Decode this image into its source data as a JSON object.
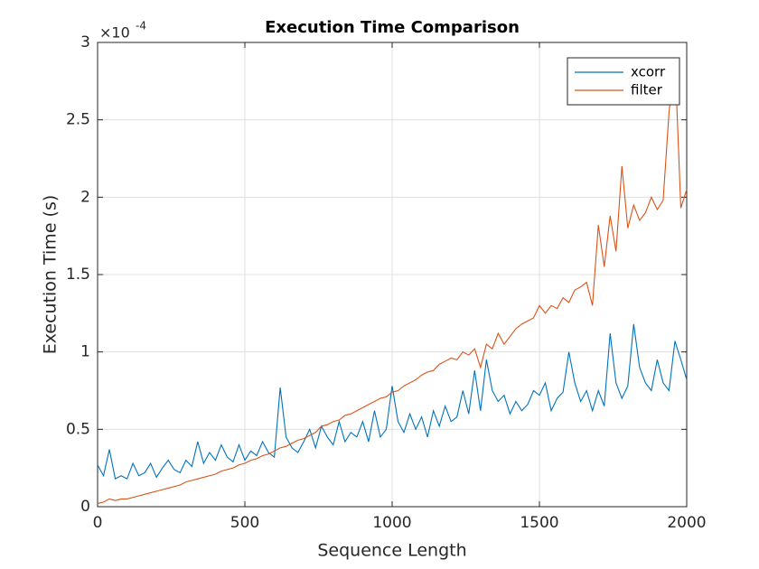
{
  "chart_data": {
    "type": "line",
    "title": "Execution Time Comparison",
    "xlabel": "Sequence Length",
    "ylabel": "Execution Time (s)",
    "y_exponent_base": "×10",
    "y_exponent": "-4",
    "x": [
      0,
      20,
      40,
      60,
      80,
      100,
      120,
      140,
      160,
      180,
      200,
      220,
      240,
      260,
      280,
      300,
      320,
      340,
      360,
      380,
      400,
      420,
      440,
      460,
      480,
      500,
      520,
      540,
      560,
      580,
      600,
      620,
      640,
      660,
      680,
      700,
      720,
      740,
      760,
      780,
      800,
      820,
      840,
      860,
      880,
      900,
      920,
      940,
      960,
      980,
      1000,
      1020,
      1040,
      1060,
      1080,
      1100,
      1120,
      1140,
      1160,
      1180,
      1200,
      1220,
      1240,
      1260,
      1280,
      1300,
      1320,
      1340,
      1360,
      1380,
      1400,
      1420,
      1440,
      1460,
      1480,
      1500,
      1520,
      1540,
      1560,
      1580,
      1600,
      1620,
      1640,
      1660,
      1680,
      1700,
      1720,
      1740,
      1760,
      1780,
      1800,
      1820,
      1840,
      1860,
      1880,
      1900,
      1920,
      1940,
      1960,
      1980,
      2000
    ],
    "series": [
      {
        "name": "xcorr",
        "color": "#0072bd",
        "values": [
          0.27,
          0.2,
          0.37,
          0.18,
          0.2,
          0.18,
          0.28,
          0.2,
          0.22,
          0.28,
          0.19,
          0.25,
          0.3,
          0.24,
          0.22,
          0.3,
          0.26,
          0.42,
          0.28,
          0.35,
          0.3,
          0.4,
          0.32,
          0.29,
          0.4,
          0.3,
          0.36,
          0.33,
          0.42,
          0.35,
          0.32,
          0.77,
          0.45,
          0.38,
          0.35,
          0.42,
          0.5,
          0.38,
          0.52,
          0.45,
          0.4,
          0.55,
          0.42,
          0.48,
          0.45,
          0.55,
          0.42,
          0.62,
          0.45,
          0.5,
          0.78,
          0.55,
          0.48,
          0.6,
          0.5,
          0.58,
          0.45,
          0.62,
          0.52,
          0.65,
          0.55,
          0.58,
          0.75,
          0.6,
          0.88,
          0.62,
          0.95,
          0.75,
          0.68,
          0.72,
          0.6,
          0.68,
          0.62,
          0.66,
          0.75,
          0.72,
          0.8,
          0.62,
          0.7,
          0.74,
          1.0,
          0.8,
          0.68,
          0.75,
          0.62,
          0.75,
          0.65,
          1.12,
          0.8,
          0.7,
          0.78,
          1.18,
          0.9,
          0.8,
          0.75,
          0.95,
          0.8,
          0.75,
          1.07,
          0.95,
          0.82
        ]
      },
      {
        "name": "filter",
        "color": "#d95319",
        "values": [
          0.02,
          0.03,
          0.05,
          0.04,
          0.05,
          0.05,
          0.06,
          0.07,
          0.08,
          0.09,
          0.1,
          0.11,
          0.12,
          0.13,
          0.14,
          0.16,
          0.17,
          0.18,
          0.19,
          0.2,
          0.21,
          0.23,
          0.24,
          0.25,
          0.27,
          0.28,
          0.3,
          0.31,
          0.33,
          0.34,
          0.36,
          0.38,
          0.39,
          0.41,
          0.43,
          0.44,
          0.46,
          0.48,
          0.52,
          0.53,
          0.55,
          0.56,
          0.59,
          0.6,
          0.62,
          0.64,
          0.66,
          0.68,
          0.7,
          0.71,
          0.74,
          0.75,
          0.78,
          0.8,
          0.82,
          0.85,
          0.87,
          0.88,
          0.92,
          0.94,
          0.96,
          0.95,
          1.0,
          0.98,
          1.02,
          0.9,
          1.05,
          1.02,
          1.12,
          1.05,
          1.1,
          1.15,
          1.18,
          1.2,
          1.22,
          1.3,
          1.25,
          1.3,
          1.28,
          1.35,
          1.32,
          1.4,
          1.42,
          1.45,
          1.3,
          1.82,
          1.55,
          1.88,
          1.65,
          2.2,
          1.8,
          1.95,
          1.85,
          1.9,
          2.0,
          1.92,
          1.98,
          2.55,
          2.9,
          1.93,
          2.05
        ]
      }
    ],
    "xlim": [
      0,
      2000
    ],
    "ylim": [
      0,
      3
    ],
    "xticks": [
      0,
      500,
      1000,
      1500,
      2000
    ],
    "yticks": [
      0,
      0.5,
      1,
      1.5,
      2,
      2.5,
      3
    ],
    "grid": true,
    "legend": "northeast"
  }
}
